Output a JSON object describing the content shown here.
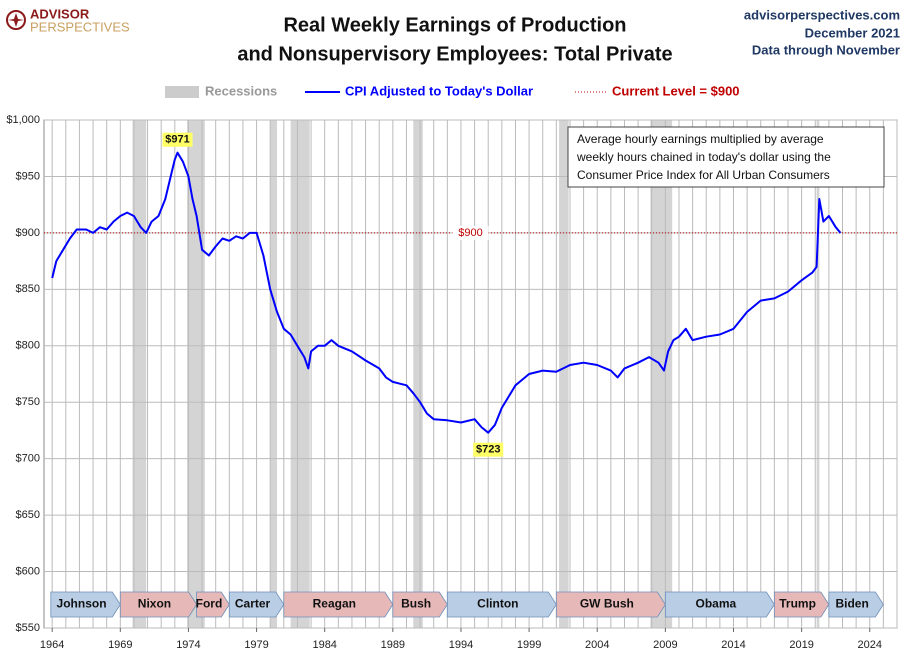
{
  "header": {
    "logo": [
      "ADVISOR",
      "PERSPECTIVES"
    ],
    "source": "advisorperspectives.com",
    "date": "December 2021",
    "data_note": "Data through November"
  },
  "chart_data": {
    "type": "line",
    "title": [
      "Real Weekly Earnings of Production",
      "and Nonsupervisory Employees: Total Private"
    ],
    "x": [
      1964.0,
      1964.3,
      1964.8,
      1965.3,
      1965.8,
      1966.5,
      1967.0,
      1967.5,
      1968.0,
      1968.5,
      1969.0,
      1969.5,
      1970.0,
      1970.5,
      1970.9,
      1971.3,
      1971.8,
      1972.3,
      1972.7,
      1973.0,
      1973.2,
      1973.6,
      1974.0,
      1974.3,
      1974.6,
      1975.0,
      1975.5,
      1976.0,
      1976.5,
      1977.0,
      1977.5,
      1978.0,
      1978.5,
      1979.0,
      1979.5,
      1980.0,
      1980.5,
      1981.0,
      1981.5,
      1982.0,
      1982.5,
      1982.8,
      1983.0,
      1983.5,
      1984.0,
      1984.5,
      1985.0,
      1986.0,
      1987.0,
      1988.0,
      1988.5,
      1989.0,
      1990.0,
      1990.5,
      1991.0,
      1991.5,
      1992.0,
      1993.0,
      1994.0,
      1995.0,
      1995.5,
      1996.0,
      1996.5,
      1997.0,
      1998.0,
      1999.0,
      2000.0,
      2001.0,
      2001.5,
      2002.0,
      2003.0,
      2004.0,
      2005.0,
      2005.5,
      2006.0,
      2007.0,
      2007.8,
      2008.5,
      2008.9,
      2009.2,
      2009.6,
      2010.0,
      2010.5,
      2011.0,
      2012.0,
      2013.0,
      2014.0,
      2015.0,
      2016.0,
      2017.0,
      2018.0,
      2019.0,
      2019.8,
      2020.1,
      2020.3,
      2020.6,
      2021.0,
      2021.5,
      2021.85
    ],
    "series": [
      {
        "name": "CPI Adjusted to Today's Dollar",
        "color": "#0000ff",
        "values": [
          860,
          875,
          885,
          895,
          903,
          903,
          900,
          905,
          903,
          910,
          915,
          918,
          915,
          905,
          900,
          910,
          915,
          930,
          950,
          965,
          971,
          963,
          950,
          930,
          915,
          885,
          880,
          888,
          895,
          893,
          897,
          895,
          900,
          900,
          880,
          850,
          830,
          815,
          810,
          800,
          790,
          780,
          795,
          800,
          800,
          805,
          800,
          795,
          787,
          780,
          772,
          768,
          765,
          758,
          750,
          740,
          735,
          734,
          732,
          735,
          728,
          723,
          730,
          745,
          765,
          775,
          778,
          777,
          780,
          783,
          785,
          783,
          778,
          772,
          780,
          785,
          790,
          785,
          778,
          795,
          805,
          808,
          815,
          805,
          808,
          810,
          815,
          830,
          840,
          842,
          848,
          858,
          865,
          870,
          930,
          910,
          915,
          905,
          900
        ]
      }
    ],
    "xlim": [
      1963.4,
      2026
    ],
    "xticks": [
      1964,
      1969,
      1974,
      1979,
      1984,
      1989,
      1994,
      1999,
      2004,
      2009,
      2014,
      2019,
      2024
    ],
    "ylim": [
      550,
      1000
    ],
    "yticks": [
      {
        "value": 550,
        "label": "$550"
      },
      {
        "value": 600,
        "label": "$600"
      },
      {
        "value": 650,
        "label": "$650"
      },
      {
        "value": 700,
        "label": "$700"
      },
      {
        "value": 750,
        "label": "$750"
      },
      {
        "value": 800,
        "label": "$800"
      },
      {
        "value": 850,
        "label": "$850"
      },
      {
        "value": 900,
        "label": "$900"
      },
      {
        "value": 950,
        "label": "$950"
      },
      {
        "value": 1000,
        "label": "$1,000"
      }
    ],
    "grid": true,
    "recession_label": "Recessions",
    "recessions": [
      {
        "start": 1969.9,
        "end": 1970.9
      },
      {
        "start": 1973.9,
        "end": 1975.2
      },
      {
        "start": 1980.0,
        "end": 1980.5
      },
      {
        "start": 1981.5,
        "end": 1982.9
      },
      {
        "start": 1990.5,
        "end": 1991.2
      },
      {
        "start": 2001.2,
        "end": 2001.9
      },
      {
        "start": 2007.9,
        "end": 2009.5
      },
      {
        "start": 2020.1,
        "end": 2020.3
      }
    ],
    "reference_line": {
      "value": 900,
      "label": "$900",
      "legend": "Current Level = $900",
      "color": "#c00000"
    },
    "annotations": [
      {
        "x": 1973.2,
        "value": 971,
        "label": "$971",
        "position": "above"
      },
      {
        "x": 1996.0,
        "value": 723,
        "label": "$723",
        "position": "below"
      }
    ],
    "note": [
      "Average hourly earnings multiplied by average",
      "weekly hours chained in today's dollar using the",
      "Consumer Price Index for All Urban Consumers"
    ],
    "presidents": [
      {
        "name": "Johnson",
        "start": 1963.9,
        "end": 1969.0,
        "color": "#b9cde5"
      },
      {
        "name": "Nixon",
        "start": 1969.0,
        "end": 1974.6,
        "color": "#e6b9b8"
      },
      {
        "name": "Ford",
        "start": 1974.6,
        "end": 1977.0,
        "color": "#e6b9b8"
      },
      {
        "name": "Carter",
        "start": 1977.0,
        "end": 1981.0,
        "color": "#b9cde5"
      },
      {
        "name": "Reagan",
        "start": 1981.0,
        "end": 1989.0,
        "color": "#e6b9b8"
      },
      {
        "name": "Bush",
        "start": 1989.0,
        "end": 1993.0,
        "color": "#e6b9b8"
      },
      {
        "name": "Clinton",
        "start": 1993.0,
        "end": 2001.0,
        "color": "#b9cde5"
      },
      {
        "name": "GW Bush",
        "start": 2001.0,
        "end": 2009.0,
        "color": "#e6b9b8"
      },
      {
        "name": "Obama",
        "start": 2009.0,
        "end": 2017.0,
        "color": "#b9cde5"
      },
      {
        "name": "Trump",
        "start": 2017.0,
        "end": 2021.0,
        "color": "#e6b9b8"
      },
      {
        "name": "Biden",
        "start": 2021.0,
        "end": 2025.0,
        "color": "#b9cde5"
      }
    ]
  }
}
